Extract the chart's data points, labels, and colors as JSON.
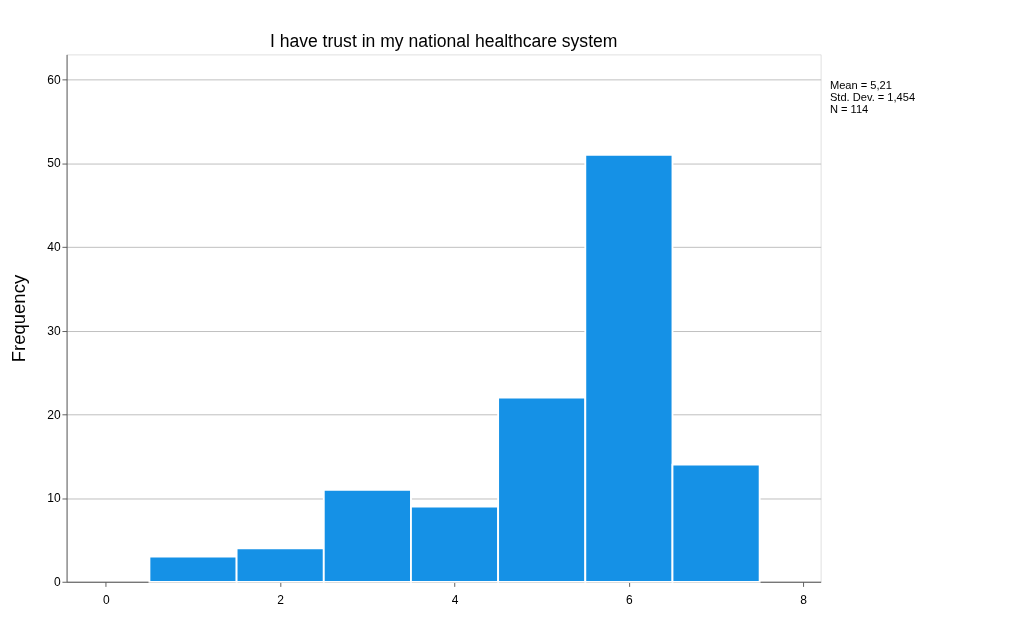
{
  "chart_data": {
    "type": "histogram",
    "title": "I have trust in my national healthcare system",
    "ylabel": "Frequency",
    "bins": [
      0.5,
      1.5,
      2.5,
      3.5,
      4.5,
      5.5,
      6.5,
      7.5
    ],
    "values": [
      3,
      4,
      11,
      9,
      22,
      51,
      14
    ],
    "color": "#1591e6",
    "xlim": [
      -0.45,
      8.2
    ],
    "xticks": [
      0,
      2,
      4,
      6,
      8
    ],
    "ylim": [
      0,
      63
    ],
    "yticks": [
      0,
      10,
      20,
      30,
      40,
      50,
      60
    ],
    "grid": "y",
    "annotations": [
      "Mean = 5,21",
      "Std. Dev. = 1,454",
      "N = 114"
    ]
  }
}
